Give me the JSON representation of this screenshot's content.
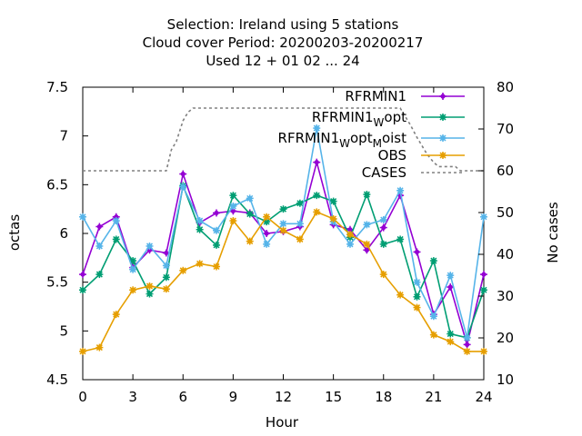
{
  "chart_data": {
    "type": "line",
    "title_lines": [
      "Selection: Ireland using      5 stations",
      "Cloud cover   Period: 20200203-20200217",
      "Used  12 + 01 02 ... 24"
    ],
    "xlabel": "Hour",
    "ylabel": "octas",
    "y2label": "No cases",
    "xlim": [
      0,
      24
    ],
    "ylim": [
      4.5,
      7.5
    ],
    "y2lim": [
      10,
      80
    ],
    "x_ticks": [
      0,
      3,
      6,
      9,
      12,
      15,
      18,
      21,
      24
    ],
    "y_ticks": [
      "4.5",
      "5",
      "5.5",
      "6",
      "6.5",
      "7",
      "7.5"
    ],
    "y2_ticks": [
      10,
      20,
      30,
      40,
      50,
      60,
      70,
      80
    ],
    "x": [
      0,
      1,
      2,
      3,
      4,
      5,
      6,
      7,
      8,
      9,
      10,
      11,
      12,
      13,
      14,
      15,
      16,
      17,
      18,
      19,
      20,
      21,
      22,
      23,
      24
    ],
    "series": [
      {
        "name": "RFRMIN1",
        "legend_main": "RFRMIN1",
        "legend_sub": "",
        "legend_tail": "",
        "color": "#9400d3",
        "marker": "plus",
        "values": [
          5.58,
          6.07,
          6.17,
          5.65,
          5.83,
          5.8,
          6.61,
          6.11,
          6.21,
          6.23,
          6.21,
          6.0,
          6.02,
          6.07,
          6.73,
          6.09,
          6.04,
          5.83,
          6.06,
          6.39,
          5.81,
          5.17,
          5.45,
          4.86,
          5.58
        ]
      },
      {
        "name": "RFRMIN1 W opt",
        "legend_main": "RFRMIN1",
        "legend_sub": "W",
        "legend_tail": "opt",
        "color": "#009e73",
        "marker": "star",
        "values": [
          5.42,
          5.58,
          5.94,
          5.72,
          5.38,
          5.55,
          6.49,
          6.04,
          5.88,
          6.39,
          6.2,
          6.12,
          6.25,
          6.31,
          6.39,
          6.33,
          5.96,
          6.4,
          5.89,
          5.94,
          5.35,
          5.72,
          4.97,
          4.93,
          5.42
        ]
      },
      {
        "name": "RFRMIN1 W opt M oist",
        "legend_main": "RFRMIN1",
        "legend_sub": "W",
        "legend_tail": "opt",
        "legend_sub2": "M",
        "legend_tail2": "oist",
        "color": "#56b4e9",
        "marker": "star",
        "values": [
          6.17,
          5.87,
          6.13,
          5.63,
          5.87,
          5.67,
          6.48,
          6.13,
          6.03,
          6.28,
          6.36,
          5.89,
          6.1,
          6.1,
          7.08,
          6.12,
          5.89,
          6.09,
          6.14,
          6.44,
          5.5,
          5.15,
          5.57,
          4.93,
          6.17
        ]
      },
      {
        "name": "OBS",
        "legend_main": "OBS",
        "legend_sub": "",
        "legend_tail": "",
        "color": "#e69f00",
        "marker": "star",
        "values": [
          4.79,
          4.83,
          5.17,
          5.42,
          5.46,
          5.43,
          5.62,
          5.69,
          5.66,
          6.13,
          5.92,
          6.17,
          6.03,
          5.94,
          6.22,
          6.15,
          5.99,
          5.89,
          5.58,
          5.37,
          5.24,
          4.96,
          4.89,
          4.79,
          4.79
        ]
      }
    ],
    "cases": {
      "name": "CASES",
      "color": "#808080",
      "axis": "y2",
      "x": [
        0,
        4,
        5,
        5.3,
        5.6,
        6,
        6.3,
        6.6,
        7,
        8,
        9,
        10,
        11,
        12,
        13,
        14,
        15,
        16,
        17,
        18,
        18.3,
        18.6,
        19,
        19.3,
        19.6,
        20,
        20.3,
        20.6,
        21,
        21.3,
        21.6,
        22,
        22.3,
        22.6,
        23,
        23.3,
        23.6,
        24
      ],
      "values": [
        60,
        60,
        60,
        65,
        67,
        72,
        74,
        75,
        75,
        75,
        75,
        75,
        75,
        75,
        75,
        75,
        75,
        75,
        75,
        75,
        75,
        75,
        75,
        73,
        71,
        68,
        66,
        64,
        62,
        61,
        61,
        61,
        61,
        60,
        60,
        60,
        60,
        60
      ]
    }
  }
}
